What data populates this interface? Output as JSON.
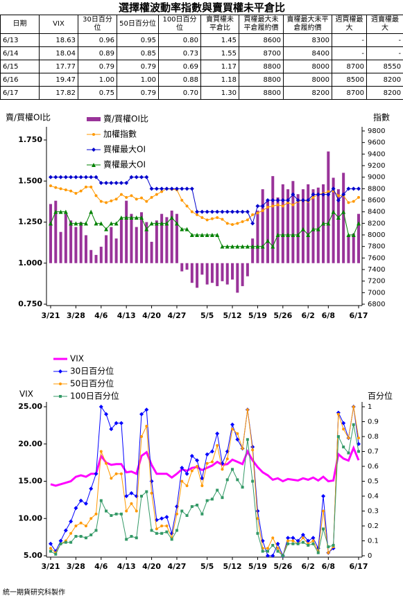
{
  "header": {
    "title": "選擇權波動率指數與賣買權未平倉比"
  },
  "table": {
    "columns": [
      "日期",
      "VIX",
      "30日百分位",
      "50日百分位",
      "100日百分位",
      "賣買權未平倉比",
      "買權最大未平倉履約價",
      "賣權最大未平倉履約價",
      "週買權最大",
      "週賣權最大"
    ],
    "rows": [
      [
        "6/13",
        "18.63",
        "0.96",
        "0.95",
        "0.80",
        "1.45",
        "8600",
        "8300",
        "-",
        "-"
      ],
      [
        "6/14",
        "18.04",
        "0.89",
        "0.85",
        "0.73",
        "1.55",
        "8700",
        "8400",
        "-",
        "-"
      ],
      [
        "6/15",
        "17.77",
        "0.79",
        "0.79",
        "0.69",
        "1.17",
        "8800",
        "8000",
        "8700",
        "8550"
      ],
      [
        "6/16",
        "19.47",
        "1.00",
        "1.00",
        "0.88",
        "1.18",
        "8800",
        "8000",
        "8500",
        "8200"
      ],
      [
        "6/17",
        "17.82",
        "0.75",
        "0.79",
        "0.70",
        "1.30",
        "8800",
        "8200",
        "8700",
        "8200"
      ]
    ]
  },
  "chart_data": [
    {
      "type": "bar",
      "y_label": "賣/買權OI比",
      "y2_label": "指數",
      "legend": "upper left",
      "bar_base": 1,
      "categories": [
        "3/21",
        null,
        null,
        null,
        null,
        "3/28",
        null,
        null,
        null,
        null,
        "4/6",
        null,
        null,
        null,
        null,
        "4/13",
        null,
        null,
        null,
        null,
        "4/20",
        null,
        null,
        null,
        null,
        "4/27",
        null,
        null,
        null,
        null,
        null,
        "5/5",
        null,
        null,
        null,
        null,
        "5/12",
        null,
        null,
        null,
        null,
        "5/19",
        null,
        null,
        null,
        null,
        "5/26",
        null,
        null,
        null,
        null,
        "6/2",
        null,
        null,
        null,
        "6/8",
        null,
        null,
        null,
        null,
        null,
        "6/17"
      ],
      "ylim": [
        0.75,
        1.75
      ],
      "yticks": [
        {
          "value": 0.75,
          "label": "0.750"
        },
        {
          "value": 1,
          "label": "1.000"
        },
        {
          "value": 1.25,
          "label": "1.250"
        },
        {
          "value": 1.5,
          "label": "1.500"
        },
        {
          "value": 1.75,
          "label": "1.750"
        }
      ],
      "y2lim": [
        6800,
        9800
      ],
      "y2ticks": [
        6800,
        7000,
        7200,
        7400,
        7600,
        7800,
        8000,
        8200,
        8400,
        8600,
        8800,
        9000,
        9200,
        9400,
        9600,
        9800
      ],
      "series": [
        {
          "name": "賣/買權OI比",
          "type": "bar",
          "color": "#993399",
          "values": [
            1.36,
            1.38,
            1.19,
            1.3,
            1.26,
            1.22,
            1.25,
            1.17,
            1.08,
            1.05,
            1.1,
            1.17,
            1.22,
            1.15,
            1.27,
            1.38,
            1.3,
            1.22,
            1.31,
            1.25,
            1.13,
            1.26,
            1.3,
            1.28,
            1.32,
            1.3,
            0.95,
            0.96,
            0.88,
            0.85,
            0.93,
            0.87,
            0.88,
            0.86,
            0.89,
            0.87,
            0.9,
            0.82,
            0.86,
            0.92,
            1.15,
            1.32,
            1.45,
            1.38,
            1.53,
            1.4,
            1.48,
            1.45,
            1.5,
            1.42,
            1.45,
            1.48,
            1.45,
            1.46,
            1.48,
            1.68,
            1.52,
            1.45,
            1.55,
            1.17,
            1.18,
            1.3
          ]
        },
        {
          "name": "加權指數",
          "type": "line",
          "axis": "y2",
          "marker": "circle",
          "color": "#ff9900",
          "values": [
            8850,
            8820,
            8800,
            8780,
            8760,
            8720,
            8760,
            8830,
            8830,
            8680,
            8580,
            8560,
            8590,
            8620,
            8700,
            8650,
            8680,
            8620,
            8640,
            8580,
            8650,
            8700,
            8750,
            8800,
            8790,
            8780,
            8600,
            8500,
            8400,
            8350,
            8300,
            8260,
            8280,
            8300,
            8270,
            8200,
            8180,
            8200,
            8230,
            8260,
            8350,
            8380,
            8420,
            8480,
            8500,
            8520,
            8500,
            8560,
            8520,
            8580,
            8600,
            8580,
            8650,
            8700,
            8720,
            8750,
            8760,
            8680,
            8680,
            8560,
            8580,
            8650
          ]
        },
        {
          "name": "買權最大OI",
          "type": "line",
          "axis": "y2",
          "marker": "diamond",
          "color": "#0000cc",
          "values": [
            9000,
            9000,
            9000,
            9000,
            9000,
            9000,
            9000,
            9000,
            9000,
            9000,
            8900,
            8900,
            8900,
            8900,
            8900,
            8900,
            9000,
            9000,
            9000,
            9000,
            8800,
            8800,
            8800,
            8800,
            8800,
            8800,
            8800,
            8800,
            8800,
            8400,
            8400,
            8400,
            8400,
            8400,
            8400,
            8400,
            8400,
            8400,
            8400,
            8400,
            8200,
            8500,
            8500,
            8600,
            8600,
            8600,
            8600,
            8600,
            8700,
            8600,
            8600,
            8600,
            8700,
            8700,
            8700,
            8700,
            8800,
            8600,
            8700,
            8800,
            8800,
            8800
          ]
        },
        {
          "name": "賣權最大OI",
          "type": "line",
          "axis": "y2",
          "marker": "triangle",
          "color": "#008000",
          "values": [
            8200,
            8400,
            8400,
            8400,
            8200,
            8200,
            8200,
            8200,
            8400,
            8200,
            8200,
            8100,
            8200,
            8200,
            8300,
            8300,
            8300,
            8300,
            8300,
            8100,
            8200,
            8200,
            8200,
            8200,
            8300,
            8200,
            8100,
            8100,
            8000,
            8000,
            8000,
            8000,
            8000,
            8000,
            7800,
            7800,
            7800,
            7800,
            7800,
            7800,
            7800,
            7800,
            7800,
            7900,
            7800,
            8000,
            8000,
            8000,
            8000,
            8000,
            8100,
            8000,
            8100,
            8100,
            8200,
            8200,
            8400,
            8300,
            8400,
            8000,
            8000,
            8200
          ]
        }
      ]
    },
    {
      "type": "line",
      "y_label": "VIX",
      "y2_label": "百分位",
      "legend": "top",
      "categories": [
        "3/21",
        null,
        null,
        null,
        null,
        "3/28",
        null,
        null,
        null,
        null,
        "4/6",
        null,
        null,
        null,
        null,
        "4/13",
        null,
        null,
        null,
        null,
        "4/20",
        null,
        null,
        null,
        null,
        "4/27",
        null,
        null,
        null,
        null,
        null,
        "5/5",
        null,
        null,
        null,
        null,
        "5/12",
        null,
        null,
        null,
        null,
        "5/19",
        null,
        null,
        null,
        null,
        "5/26",
        null,
        null,
        null,
        null,
        "6/2",
        null,
        null,
        null,
        "6/8",
        null,
        null,
        null,
        null,
        null,
        "6/17"
      ],
      "ylim": [
        5,
        25
      ],
      "yticks": [
        {
          "value": 5,
          "label": "5.00"
        },
        {
          "value": 10,
          "label": "10.00"
        },
        {
          "value": 15,
          "label": "15.00"
        },
        {
          "value": 20,
          "label": "20.00"
        },
        {
          "value": 25,
          "label": "25.00"
        }
      ],
      "y2lim": [
        0,
        1
      ],
      "y2ticks": [
        0,
        0.1,
        0.2,
        0.3,
        0.4,
        0.5,
        0.6,
        0.7,
        0.8,
        0.9,
        1
      ],
      "series": [
        {
          "name": "VIX",
          "type": "line",
          "marker": "none",
          "color": "#ff00ff",
          "values": [
            14.6,
            14.4,
            14.6,
            14.8,
            15.0,
            15.6,
            15.8,
            15.6,
            16.0,
            16.0,
            18.4,
            17.5,
            17.2,
            17.3,
            17.3,
            16.2,
            16.3,
            16.0,
            18.4,
            18.9,
            17.2,
            16.0,
            16.0,
            16.0,
            15.5,
            16.0,
            16.6,
            16.4,
            16.8,
            16.9,
            16.5,
            16.8,
            17.1,
            17.6,
            17.2,
            17.3,
            17.9,
            17.6,
            17.3,
            19.0,
            17.8,
            16.9,
            16.2,
            15.8,
            15.2,
            15.4,
            15.0,
            15.3,
            15.2,
            15.1,
            15.4,
            15.2,
            15.5,
            15.1,
            15.6,
            15.0,
            15.1,
            18.63,
            18.04,
            17.77,
            19.47,
            17.82
          ]
        },
        {
          "name": "30日百分位",
          "type": "line",
          "axis": "y2",
          "marker": "diamond",
          "color": "#0000ff",
          "values": [
            0.08,
            0.03,
            0.1,
            0.17,
            0.23,
            0.32,
            0.37,
            0.35,
            0.45,
            0.55,
            1.0,
            0.95,
            0.85,
            0.89,
            0.89,
            0.4,
            0.42,
            0.4,
            0.95,
            0.98,
            0.5,
            0.24,
            0.25,
            0.26,
            0.15,
            0.33,
            0.59,
            0.55,
            0.67,
            0.64,
            0.52,
            0.68,
            0.7,
            0.82,
            0.62,
            0.7,
            0.88,
            0.78,
            0.72,
            0.98,
            0.73,
            0.3,
            0.1,
            0.0,
            0.0,
            0.08,
            0.0,
            0.12,
            0.12,
            0.1,
            0.14,
            0.1,
            0.12,
            0.05,
            0.4,
            0.02,
            0.05,
            0.96,
            0.89,
            0.79,
            1.0,
            0.75
          ]
        },
        {
          "name": "50日百分位",
          "type": "line",
          "axis": "y2",
          "marker": "circle",
          "color": "#ff9900",
          "values": [
            0.05,
            0.02,
            0.08,
            0.1,
            0.15,
            0.2,
            0.22,
            0.2,
            0.25,
            0.28,
            0.7,
            0.62,
            0.52,
            0.55,
            0.55,
            0.3,
            0.35,
            0.3,
            0.8,
            0.87,
            0.42,
            0.18,
            0.2,
            0.2,
            0.12,
            0.28,
            0.5,
            0.47,
            0.57,
            0.6,
            0.47,
            0.62,
            0.63,
            0.74,
            0.58,
            0.65,
            0.85,
            0.82,
            0.72,
            0.98,
            0.71,
            0.25,
            0.05,
            0.05,
            0.12,
            0.05,
            0.0,
            0.1,
            0.1,
            0.08,
            0.12,
            0.08,
            0.1,
            0.03,
            0.3,
            0.02,
            0.06,
            0.95,
            0.85,
            0.79,
            1.0,
            0.79
          ]
        },
        {
          "name": "100日百分位",
          "type": "line",
          "axis": "y2",
          "marker": "square",
          "color": "#339966",
          "values": [
            0.03,
            0.01,
            0.08,
            0.09,
            0.09,
            0.13,
            0.13,
            0.12,
            0.14,
            0.17,
            0.37,
            0.3,
            0.27,
            0.28,
            0.28,
            0.11,
            0.13,
            0.12,
            0.4,
            0.43,
            0.17,
            0.15,
            0.15,
            0.16,
            0.11,
            0.17,
            0.3,
            0.27,
            0.33,
            0.34,
            0.28,
            0.37,
            0.38,
            0.44,
            0.39,
            0.51,
            0.58,
            0.51,
            0.46,
            0.78,
            0.5,
            0.15,
            0.03,
            0.03,
            0.07,
            0.03,
            0.0,
            0.08,
            0.08,
            0.08,
            0.09,
            0.07,
            0.08,
            0.02,
            0.18,
            0.06,
            0.07,
            0.8,
            0.73,
            0.69,
            0.88,
            0.7
          ]
        }
      ]
    }
  ],
  "footer": "統一期貨研究科製作"
}
